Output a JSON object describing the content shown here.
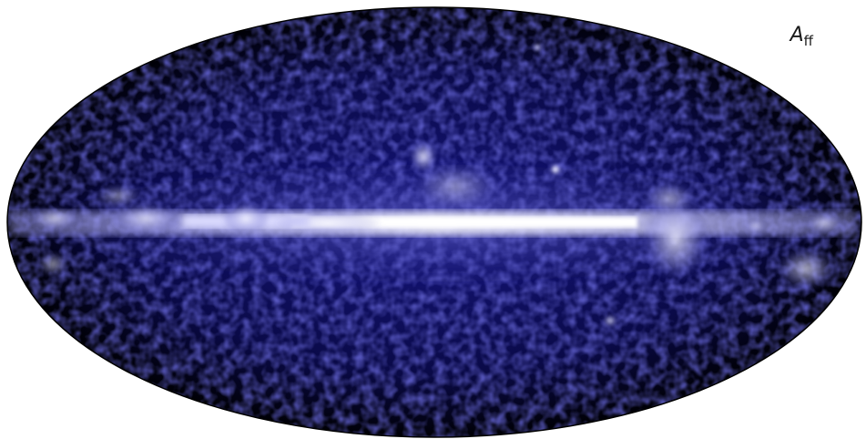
{
  "map": {
    "projection": "mollweide",
    "colors": {
      "background": "#ffffff",
      "sky_dark": "#000008",
      "sky_mid": "#1b1b9c",
      "plane_bright": "#ffffff",
      "emission_glow": "#b8b8ee"
    },
    "label": {
      "main": "A",
      "sub": "ff"
    }
  }
}
